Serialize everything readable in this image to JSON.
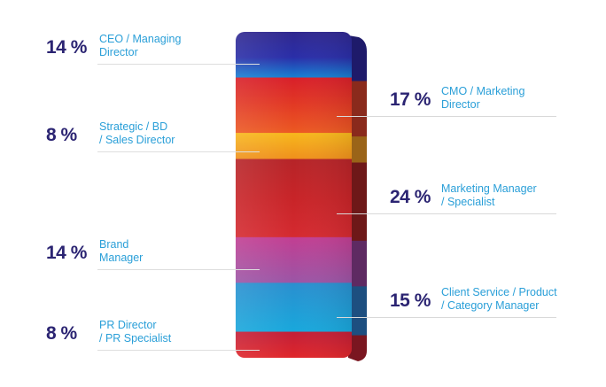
{
  "chart_data": {
    "type": "stacked-bar",
    "title": "",
    "segments": [
      {
        "value": 14,
        "pct_label": "14 %",
        "line1": "CEO / Managing",
        "line2": "Director",
        "side": "left",
        "color": "#2f2d9a"
      },
      {
        "value": 17,
        "pct_label": "17 %",
        "line1": "CMO / Marketing",
        "line2": "Director",
        "side": "right",
        "color": "#e03424"
      },
      {
        "value": 8,
        "pct_label": "8 %",
        "line1": "Strategic / BD",
        "line2": "/ Sales Director",
        "side": "left",
        "color": "#f4a81c"
      },
      {
        "value": 24,
        "pct_label": "24 %",
        "line1": "Marketing Manager",
        "line2": "/ Specialist",
        "side": "right",
        "color": "#c8262a"
      },
      {
        "value": 14,
        "pct_label": "14 %",
        "line1": "Brand",
        "line2": "Manager",
        "side": "left",
        "color": "#b04a9c"
      },
      {
        "value": 15,
        "pct_label": "15 %",
        "line1": "Client Service / Product",
        "line2": "/ Category Manager",
        "side": "right",
        "color": "#1f9fd6"
      },
      {
        "value": 8,
        "pct_label": "8 %",
        "line1": "PR Director",
        "line2": "/ PR Specialist",
        "side": "left",
        "color": "#d8262e"
      }
    ]
  }
}
